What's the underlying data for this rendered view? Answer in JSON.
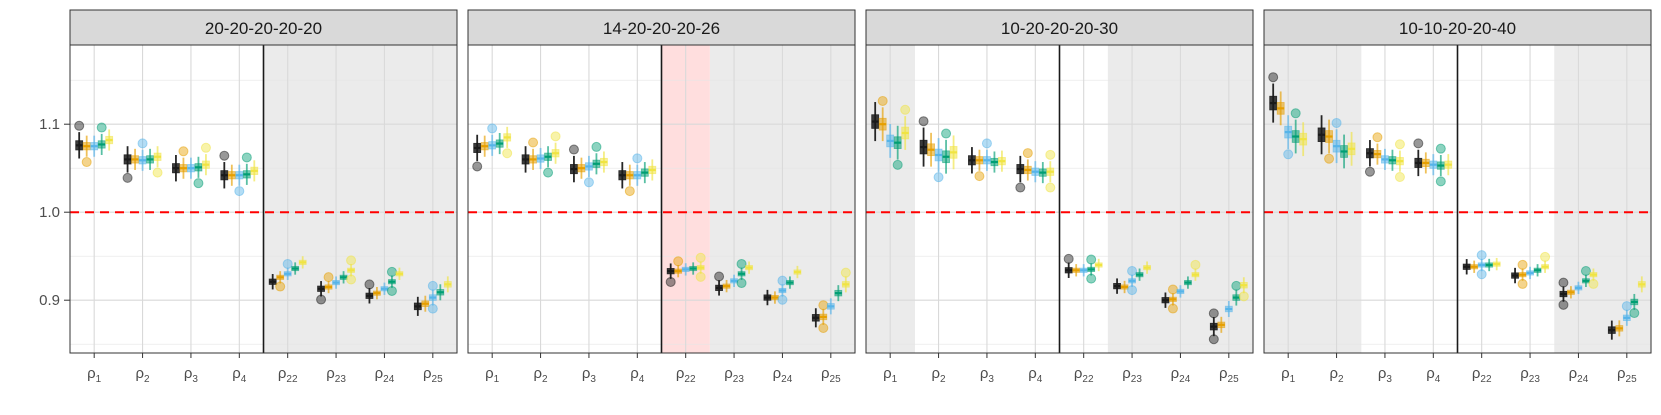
{
  "chart_data": {
    "type": "boxplot",
    "ylim": [
      0.84,
      1.19
    ],
    "yticks": [
      0.9,
      1.0,
      1.1
    ],
    "ytick_labels": [
      "0.9",
      "1.0",
      "1.1"
    ],
    "reference_line": 1.0,
    "reference_line_color": "#ff0000",
    "parameters": [
      {
        "base": "ρ",
        "sub": "1"
      },
      {
        "base": "ρ",
        "sub": "2"
      },
      {
        "base": "ρ",
        "sub": "3"
      },
      {
        "base": "ρ",
        "sub": "4"
      },
      {
        "base": "ρ",
        "sub": "22"
      },
      {
        "base": "ρ",
        "sub": "23"
      },
      {
        "base": "ρ",
        "sub": "24"
      },
      {
        "base": "ρ",
        "sub": "25"
      }
    ],
    "series_colors": [
      "#1a1a1a",
      "#E69F00",
      "#56B4E9",
      "#009E73",
      "#F0E442"
    ],
    "panels": [
      {
        "title": "20-20-20-20-20",
        "shade": [
          4,
          5,
          6,
          7
        ],
        "highlight": [],
        "medians": [
          [
            1.076,
            1.075,
            1.075,
            1.077,
            1.082
          ],
          [
            1.06,
            1.06,
            1.059,
            1.06,
            1.063
          ],
          [
            1.05,
            1.05,
            1.05,
            1.051,
            1.054
          ],
          [
            1.042,
            1.042,
            1.042,
            1.043,
            1.047
          ],
          [
            0.921,
            0.926,
            0.93,
            0.936,
            0.943
          ],
          [
            0.913,
            0.915,
            0.92,
            0.926,
            0.934
          ],
          [
            0.905,
            0.908,
            0.913,
            0.921,
            0.93
          ],
          [
            0.893,
            0.896,
            0.903,
            0.909,
            0.918
          ]
        ]
      },
      {
        "title": "14-20-20-20-26",
        "shade": [
          5,
          6,
          7
        ],
        "highlight": [
          4
        ],
        "medians": [
          [
            1.073,
            1.075,
            1.076,
            1.078,
            1.085
          ],
          [
            1.06,
            1.06,
            1.061,
            1.063,
            1.067
          ],
          [
            1.049,
            1.05,
            1.052,
            1.055,
            1.057
          ],
          [
            1.042,
            1.042,
            1.042,
            1.045,
            1.048
          ],
          [
            0.933,
            0.933,
            0.935,
            0.936,
            0.937
          ],
          [
            0.914,
            0.916,
            0.922,
            0.93,
            0.937
          ],
          [
            0.903,
            0.903,
            0.911,
            0.92,
            0.932
          ],
          [
            0.88,
            0.881,
            0.893,
            0.908,
            0.918
          ]
        ]
      },
      {
        "title": "10-20-20-20-30",
        "shade": [
          0,
          5,
          6,
          7
        ],
        "highlight": [],
        "medians": [
          [
            1.103,
            1.1,
            1.081,
            1.079,
            1.09
          ],
          [
            1.074,
            1.071,
            1.065,
            1.063,
            1.068
          ],
          [
            1.059,
            1.059,
            1.059,
            1.057,
            1.058
          ],
          [
            1.049,
            1.048,
            1.046,
            1.045,
            1.046
          ],
          [
            0.934,
            0.934,
            0.934,
            0.935,
            0.94
          ],
          [
            0.916,
            0.915,
            0.922,
            0.929,
            0.937
          ],
          [
            0.9,
            0.901,
            0.91,
            0.92,
            0.929
          ],
          [
            0.87,
            0.872,
            0.89,
            0.903,
            0.917
          ]
        ]
      },
      {
        "title": "10-10-20-20-40",
        "shade": [
          0,
          1,
          6,
          7
        ],
        "highlight": [],
        "medians": [
          [
            1.124,
            1.118,
            1.091,
            1.086,
            1.083
          ],
          [
            1.088,
            1.086,
            1.075,
            1.069,
            1.072
          ],
          [
            1.067,
            1.066,
            1.06,
            1.059,
            1.058
          ],
          [
            1.056,
            1.056,
            1.054,
            1.053,
            1.054
          ],
          [
            0.938,
            0.938,
            0.94,
            0.94,
            0.941
          ],
          [
            0.928,
            0.929,
            0.931,
            0.934,
            0.938
          ],
          [
            0.907,
            0.909,
            0.914,
            0.922,
            0.929
          ],
          [
            0.866,
            0.868,
            0.88,
            0.898,
            0.918
          ]
        ]
      }
    ]
  }
}
